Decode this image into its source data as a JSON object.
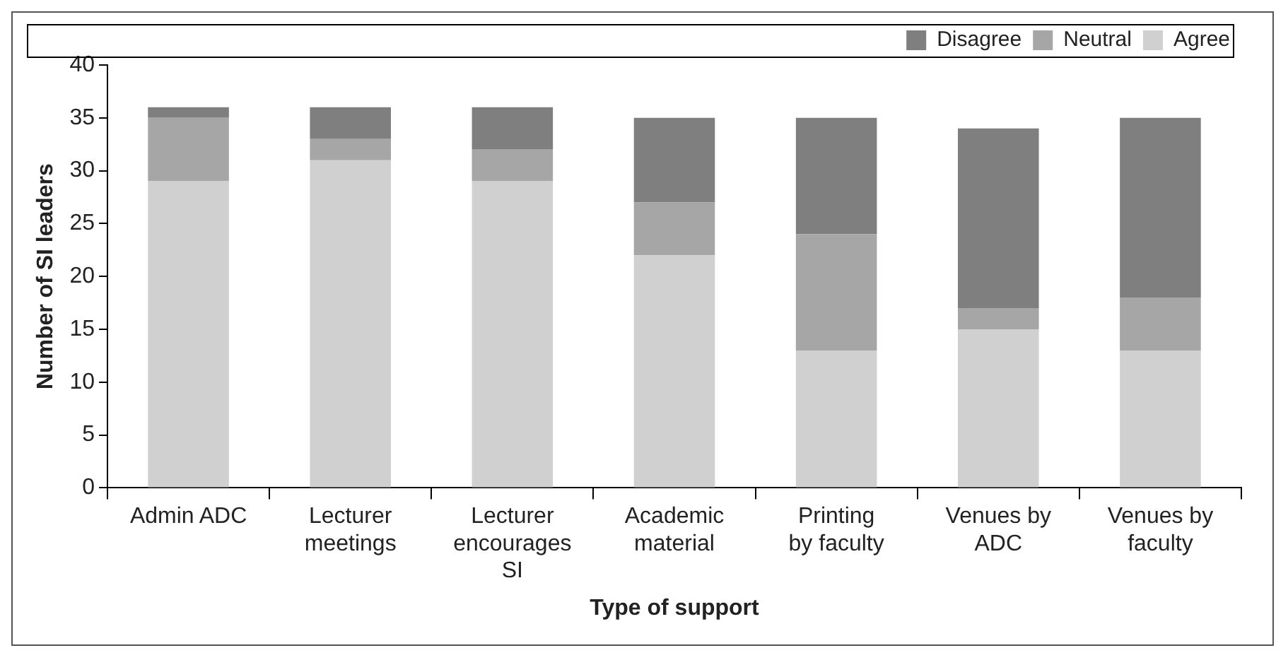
{
  "chart_data": {
    "type": "bar",
    "stacked": true,
    "xlabel": "Type of support",
    "ylabel": "Number of SI leaders",
    "categories": [
      "Admin ADC",
      "Lecturer meetings",
      "Lecturer encourages SI",
      "Academic material",
      "Printing by faculty",
      "Venues by ADC",
      "Venues by faculty"
    ],
    "series": [
      {
        "name": "Agree",
        "color": "#d0d0d0",
        "values": [
          29,
          31,
          29,
          22,
          13,
          15,
          13
        ]
      },
      {
        "name": "Neutral",
        "color": "#a6a6a6",
        "values": [
          6,
          2,
          3,
          5,
          11,
          2,
          5
        ]
      },
      {
        "name": "Disagree",
        "color": "#7f7f7f",
        "values": [
          1,
          3,
          4,
          8,
          11,
          17,
          17
        ]
      }
    ],
    "ylim": [
      0,
      40
    ],
    "yticks": [
      0,
      5,
      10,
      15,
      20,
      25,
      30,
      35,
      40
    ],
    "grid": false,
    "legend": "top right"
  }
}
